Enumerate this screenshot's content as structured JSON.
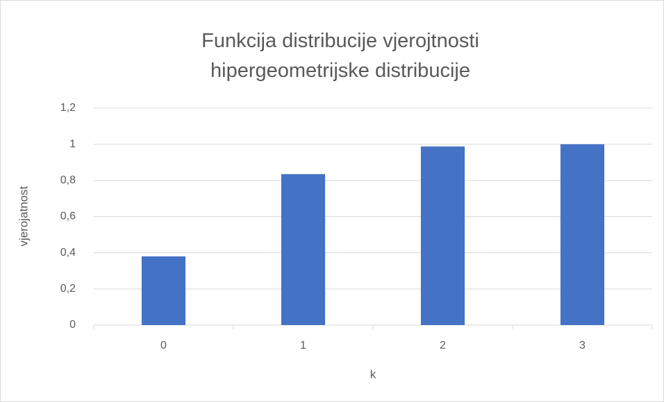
{
  "chart_data": {
    "type": "bar",
    "title": "Funkcija distribucije vjerojtnosti hipergeometrijske distribucije",
    "xlabel": "k",
    "ylabel": "vjerojatnost",
    "categories": [
      "0",
      "1",
      "2",
      "3"
    ],
    "values": [
      0.38,
      0.835,
      0.988,
      1.0
    ],
    "color": "#4472c4",
    "ylim": [
      0,
      1.2
    ],
    "yticks": [
      0,
      {
        "value": 0.2,
        "label": "0,2"
      },
      {
        "value": 0.4,
        "label": "0,4"
      },
      {
        "value": 0.6,
        "label": "0,6"
      },
      {
        "value": 0.8,
        "label": "0,8"
      },
      1,
      {
        "value": 1.2,
        "label": "1,2"
      }
    ],
    "grid": true
  }
}
